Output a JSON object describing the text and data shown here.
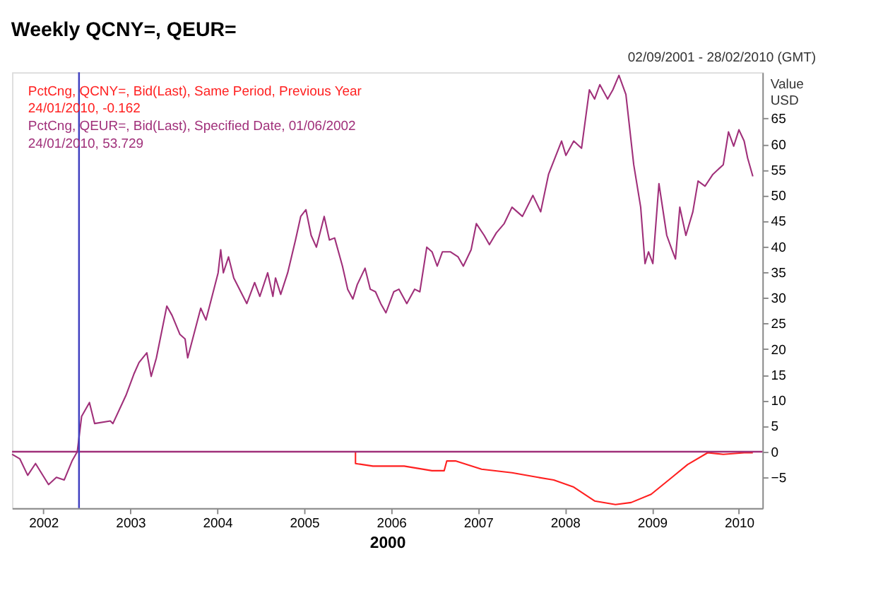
{
  "chart_data": {
    "type": "line",
    "title": "Weekly QCNY=, QEUR=",
    "xlabel": "2000",
    "ylabel": "Value USD",
    "annotations": [
      "02/09/2001 - 28/02/2010 (GMT)",
      "24/01/2010, -0.162",
      "24/01/2010, 53.729"
    ],
    "xlim": [
      2001.64,
      2010.27
    ],
    "xticks": [
      2002,
      2003,
      2004,
      2005,
      2006,
      2007,
      2008,
      2009,
      2010
    ],
    "ylim": [
      -11,
      74
    ],
    "yticks": [
      -5,
      0,
      5,
      10,
      15,
      20,
      25,
      30,
      35,
      40,
      45,
      50,
      55,
      60,
      65
    ],
    "grid": false,
    "legend": false,
    "line_style": "solid",
    "marker": "none",
    "ref_lines": [
      {
        "axis": "y",
        "value": 0,
        "color": "#a0307a"
      },
      {
        "axis": "x",
        "value": 2002.41,
        "color": "#4040c0"
      }
    ],
    "series": [
      {
        "name": "PctCng, QCNY=, Bid(Last), Same Period, Previous Year",
        "color": "#ff2020",
        "x": [
          2005.59,
          2005.59,
          2005.79,
          2006.15,
          2006.47,
          2006.61,
          2006.64,
          2006.74,
          2007.04,
          2007.39,
          2007.69,
          2007.87,
          2008.1,
          2008.34,
          2008.58,
          2008.76,
          2008.99,
          2009.23,
          2009.41,
          2009.64,
          2009.82,
          2010.06,
          2010.16
        ],
        "values": [
          0,
          -2.3,
          -2.8,
          -2.8,
          -3.7,
          -3.7,
          -1.8,
          -1.8,
          -3.4,
          -4.1,
          -5,
          -5.5,
          -6.9,
          -9.6,
          -10.3,
          -9.9,
          -8.3,
          -5,
          -2.5,
          -0.2,
          -0.5,
          -0.2,
          -0.2
        ]
      },
      {
        "name": "PctCng, QEUR=, Bid(Last), Specified Date, 01/06/2002",
        "color": "#a0307a",
        "x": [
          2001.64,
          2001.73,
          2001.82,
          2001.91,
          2002.06,
          2002.15,
          2002.24,
          2002.33,
          2002.39,
          2002.44,
          2002.53,
          2002.59,
          2002.77,
          2002.8,
          2002.95,
          2003.04,
          2003.1,
          2003.19,
          2003.24,
          2003.3,
          2003.42,
          2003.48,
          2003.57,
          2003.63,
          2003.66,
          2003.81,
          2003.87,
          2004.01,
          2004.04,
          2004.07,
          2004.13,
          2004.19,
          2004.34,
          2004.43,
          2004.49,
          2004.58,
          2004.64,
          2004.67,
          2004.73,
          2004.81,
          2004.9,
          2004.96,
          2005.02,
          2005.08,
          2005.14,
          2005.23,
          2005.29,
          2005.35,
          2005.44,
          2005.5,
          2005.56,
          2005.61,
          2005.7,
          2005.76,
          2005.82,
          2005.88,
          2005.94,
          2006.03,
          2006.09,
          2006.18,
          2006.27,
          2006.33,
          2006.41,
          2006.47,
          2006.53,
          2006.59,
          2006.68,
          2006.77,
          2006.83,
          2006.92,
          2006.98,
          2007.07,
          2007.13,
          2007.21,
          2007.3,
          2007.39,
          2007.51,
          2007.63,
          2007.72,
          2007.81,
          2007.96,
          2008.01,
          2008.1,
          2008.19,
          2008.28,
          2008.34,
          2008.4,
          2008.49,
          2008.55,
          2008.62,
          2008.7,
          2008.79,
          2008.87,
          2008.92,
          2008.96,
          2009.01,
          2009.08,
          2009.17,
          2009.23,
          2009.27,
          2009.32,
          2009.39,
          2009.47,
          2009.53,
          2009.61,
          2009.7,
          2009.82,
          2009.88,
          2009.94,
          2010.0,
          2010.06,
          2010.1,
          2010.16
        ],
        "values": [
          -0.5,
          -1.4,
          -4.6,
          -2.3,
          -6.4,
          -5,
          -5.5,
          -1.8,
          0,
          6.9,
          9.6,
          5.5,
          6,
          5.5,
          11,
          15.1,
          17.4,
          19.3,
          14.7,
          18.3,
          28.4,
          26.6,
          22.9,
          22,
          18.3,
          28,
          25.7,
          34.9,
          39.4,
          34.9,
          38,
          33.9,
          28.9,
          33,
          30.3,
          34.9,
          30.3,
          33.9,
          30.7,
          34.9,
          41.3,
          45.9,
          47.2,
          42.2,
          39.9,
          45.9,
          41.3,
          41.7,
          36.2,
          31.7,
          29.8,
          32.6,
          35.8,
          31.7,
          31.2,
          28.9,
          27.1,
          31.2,
          31.7,
          28.9,
          31.7,
          31.2,
          39.9,
          39,
          36.2,
          39,
          39,
          38,
          36.2,
          39.4,
          44.5,
          42.2,
          40.4,
          42.7,
          44.5,
          47.7,
          45.9,
          50,
          46.8,
          54.1,
          60.6,
          57.8,
          60.6,
          59.2,
          70.6,
          68.8,
          71.6,
          68.8,
          70.6,
          73.4,
          69.7,
          56,
          47.7,
          36.7,
          39,
          36.7,
          52.3,
          42.2,
          39.4,
          37.6,
          47.7,
          42.2,
          46.8,
          52.8,
          51.8,
          54.1,
          56,
          62.4,
          59.6,
          62.8,
          60.6,
          57.3,
          53.7
        ]
      }
    ]
  }
}
